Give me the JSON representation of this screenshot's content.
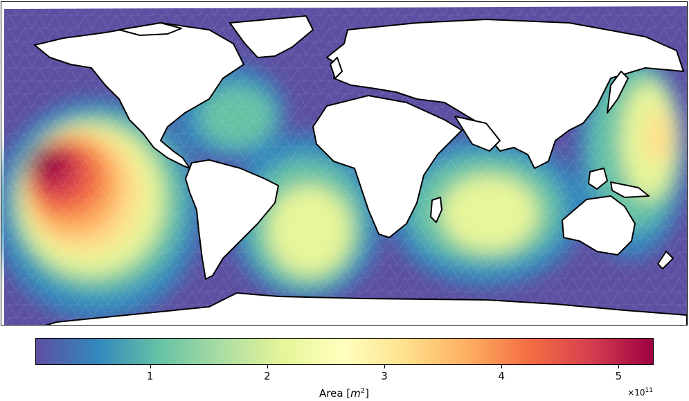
{
  "map": {
    "colormap": [
      "#5e4fa2",
      "#3288bd",
      "#66c2a5",
      "#abdda4",
      "#e6f598",
      "#ffffbf",
      "#fee08b",
      "#fdae61",
      "#f46d43",
      "#d53e4f",
      "#9e0142"
    ]
  },
  "colorbar": {
    "label_prefix": "Area [",
    "label_math": "m",
    "label_exp": "2",
    "label_suffix": "]",
    "multiplier_base": "×10",
    "multiplier_exp": "11",
    "ticks": [
      "1",
      "2",
      "3",
      "4",
      "5"
    ],
    "range": [
      0.02,
      5.3
    ]
  }
}
